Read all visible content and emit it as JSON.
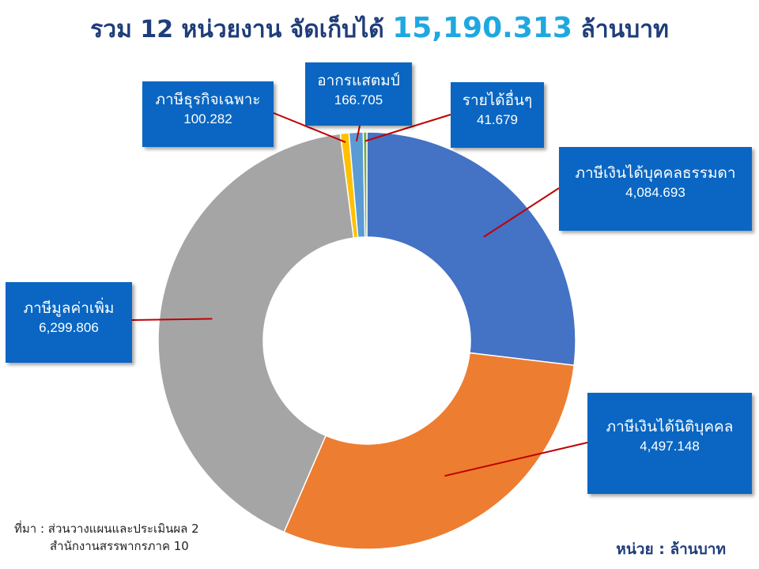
{
  "header": {
    "title_prefix": "รวม 12 หน่วยงาน จัดเก็บได้",
    "title_total": "15,190.313",
    "title_suffix": "ล้านบาท"
  },
  "chart_data": {
    "type": "pie",
    "variant": "donut",
    "categories": [
      "ภาษีเงินได้บุคคลธรรมดา",
      "ภาษีเงินได้นิติบุคคล",
      "ภาษีมูลค่าเพิ่ม",
      "ภาษีธุรกิจเฉพาะ",
      "อากรแสตมป์",
      "รายได้อื่นๆ"
    ],
    "values": [
      4084.693,
      4497.148,
      6299.806,
      100.282,
      166.705,
      41.679
    ],
    "value_labels": [
      "4,084.693",
      "4,497.148",
      "6,299.806",
      "100.282",
      "166.705",
      "41.679"
    ],
    "colors": [
      "#4472c4",
      "#ed7d31",
      "#a5a5a5",
      "#ffc000",
      "#5b9bd5",
      "#70ad47"
    ],
    "total": "15,190.313",
    "unit": "ล้านบาท"
  },
  "footer": {
    "source_label": "ที่มา",
    "source_line1": "ส่วนวางแผนและประเมินผล 2",
    "source_line2": "สำนักงานสรรพากรภาค 10",
    "unit_label": "หน่วย : ล้านบาท"
  }
}
